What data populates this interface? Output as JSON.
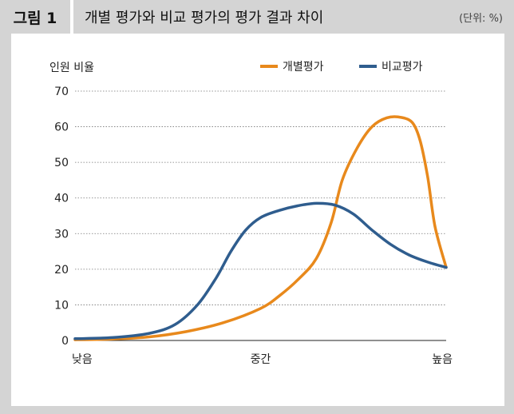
{
  "figure": {
    "label": "그림 1",
    "title": "개별 평가와 비교 평가의 평가 결과 차이",
    "unit": "(단위: %)"
  },
  "chart_data": {
    "type": "line",
    "ylabel": "인원 비율",
    "ylim": [
      0,
      70
    ],
    "yticks": [
      "0",
      "10",
      "20",
      "30",
      "40",
      "50",
      "60",
      "70"
    ],
    "xlim": [
      0,
      1
    ],
    "xticks": [
      {
        "value": 0,
        "label": "낮음"
      },
      {
        "value": 0.5,
        "label": "중간"
      },
      {
        "value": 1,
        "label": "높음"
      }
    ],
    "grid": "horizontal dotted",
    "legend_position": "top-right",
    "series": [
      {
        "name": "개별평가",
        "color": "#e8891c",
        "x": [
          0.0,
          0.1,
          0.2,
          0.3,
          0.4,
          0.5,
          0.55,
          0.6,
          0.65,
          0.69,
          0.72,
          0.76,
          0.8,
          0.84,
          0.88,
          0.91,
          0.93,
          0.95,
          0.97,
          1.0
        ],
        "y": [
          0.2,
          0.4,
          1.0,
          2.5,
          5.0,
          9.0,
          12.5,
          17.0,
          23.0,
          33.0,
          45.0,
          54.0,
          60.0,
          62.5,
          62.6,
          61.0,
          56.0,
          46.0,
          32.0,
          20.5
        ]
      },
      {
        "name": "비교평가",
        "color": "#2f5d8e",
        "x": [
          0.0,
          0.1,
          0.2,
          0.27,
          0.33,
          0.38,
          0.42,
          0.46,
          0.5,
          0.55,
          0.6,
          0.65,
          0.7,
          0.75,
          0.8,
          0.85,
          0.9,
          0.95,
          1.0
        ],
        "y": [
          0.5,
          0.8,
          2.0,
          4.5,
          10.0,
          17.5,
          25.0,
          31.0,
          34.5,
          36.5,
          37.8,
          38.5,
          38.0,
          35.5,
          31.0,
          27.0,
          24.0,
          22.0,
          20.5
        ]
      }
    ]
  }
}
